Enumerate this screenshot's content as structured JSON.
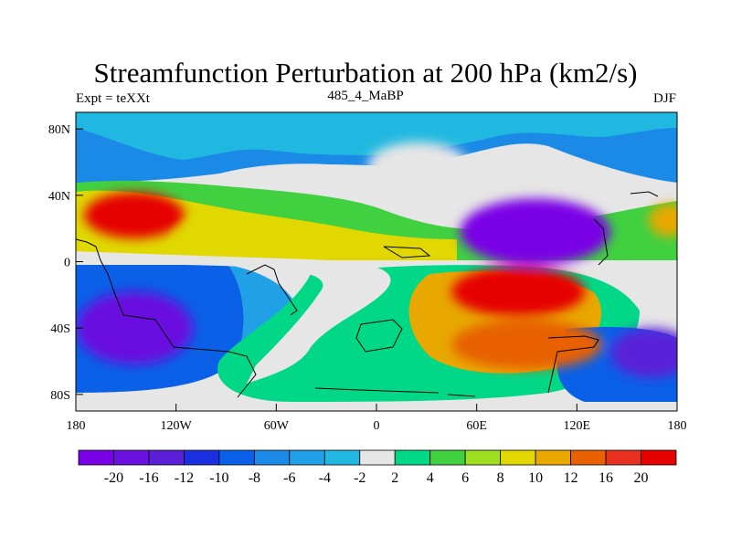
{
  "title": "Streamfunction Perturbation at 200 hPa (km2/s)",
  "subtitle_left": "Expt = teXXt",
  "subtitle_center": "485_4_MaBP",
  "subtitle_right": "DJF",
  "map": {
    "lon_range": [
      -180,
      180
    ],
    "lat_range": [
      -90,
      90
    ],
    "x_ticks": [
      {
        "value": -180,
        "label": "180"
      },
      {
        "value": -120,
        "label": "120W"
      },
      {
        "value": -60,
        "label": "60W"
      },
      {
        "value": 0,
        "label": "0"
      },
      {
        "value": 60,
        "label": "60E"
      },
      {
        "value": 120,
        "label": "120E"
      },
      {
        "value": 180,
        "label": "180"
      }
    ],
    "y_ticks": [
      {
        "value": 80,
        "label": "80N"
      },
      {
        "value": 40,
        "label": "40N"
      },
      {
        "value": 0,
        "label": "0"
      },
      {
        "value": -40,
        "label": "40S"
      },
      {
        "value": -80,
        "label": "80S"
      }
    ],
    "background_color": "#e6e6e6"
  },
  "colorbar": {
    "colors": [
      "#7a00e6",
      "#6a10e0",
      "#5a20d8",
      "#1a30e0",
      "#0a60e6",
      "#1a8ae6",
      "#20a0e6",
      "#20b8e0",
      "#e6e6e6",
      "#00d888",
      "#40d040",
      "#a0e020",
      "#e0d800",
      "#e8a800",
      "#e86000",
      "#e83020",
      "#e60000"
    ],
    "labels": [
      "-20",
      "-16",
      "-12",
      "-10",
      "-8",
      "-6",
      "-4",
      "-2",
      "2",
      "4",
      "6",
      "8",
      "10",
      "12",
      "16",
      "20"
    ]
  },
  "field_blobs": [
    {
      "lon": -145,
      "lat": 28,
      "rx": 30,
      "ry": 14,
      "level": 16
    },
    {
      "lon": -90,
      "lat": 15,
      "rx": 28,
      "ry": 8,
      "level": 12
    },
    {
      "lon": 25,
      "lat": 58,
      "rx": 30,
      "ry": 14,
      "level": 8
    },
    {
      "lon": 95,
      "lat": 18,
      "rx": 45,
      "ry": 20,
      "level": 0
    },
    {
      "lon": 85,
      "lat": -18,
      "rx": 40,
      "ry": 15,
      "level": 16
    },
    {
      "lon": 90,
      "lat": -50,
      "rx": 45,
      "ry": 15,
      "level": 14
    },
    {
      "lon": -145,
      "lat": -40,
      "rx": 35,
      "ry": 22,
      "level": 1
    },
    {
      "lon": 165,
      "lat": -55,
      "rx": 25,
      "ry": 15,
      "level": 2
    },
    {
      "lon": 175,
      "lat": 25,
      "rx": 12,
      "ry": 10,
      "level": 13
    }
  ]
}
